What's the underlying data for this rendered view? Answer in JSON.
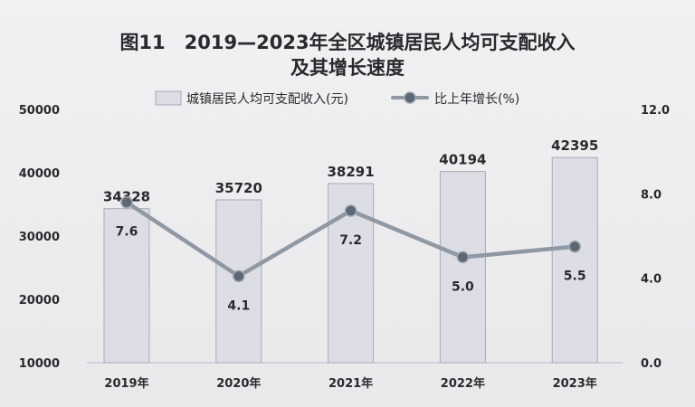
{
  "title": {
    "line1": "图11　2019—2023年全区城镇居民人均可支配收入",
    "line2": "及其增长速度"
  },
  "colors": {
    "bar_fill": "#dddde5",
    "bar_stroke": "#a9a9b6",
    "line": "#8f98a3",
    "marker": "#5d6773",
    "text": "#2a2a2e"
  },
  "chart_data": {
    "type": "bar",
    "categories": [
      "2019年",
      "2020年",
      "2021年",
      "2022年",
      "2023年"
    ],
    "series": [
      {
        "name": "城镇居民人均可支配收入(元)",
        "type": "bar",
        "axis": "left",
        "values": [
          34328,
          35720,
          38291,
          40194,
          42395
        ]
      },
      {
        "name": "比上年增长(%)",
        "type": "line",
        "axis": "right",
        "values": [
          7.6,
          4.1,
          7.2,
          5.0,
          5.5
        ]
      }
    ],
    "y_left": {
      "min": 10000,
      "max": 50000,
      "ticks": [
        "10000",
        "20000",
        "30000",
        "40000",
        "50000"
      ]
    },
    "y_right": {
      "min": 0,
      "max": 12,
      "ticks": [
        "0.0",
        "4.0",
        "8.0",
        "12.0"
      ]
    },
    "bar_labels": [
      "34328",
      "35720",
      "38291",
      "40194",
      "42395"
    ],
    "line_labels": [
      "7.6",
      "4.1",
      "7.2",
      "5.0",
      "5.5"
    ],
    "legend_position": "top-center",
    "grid": false
  }
}
